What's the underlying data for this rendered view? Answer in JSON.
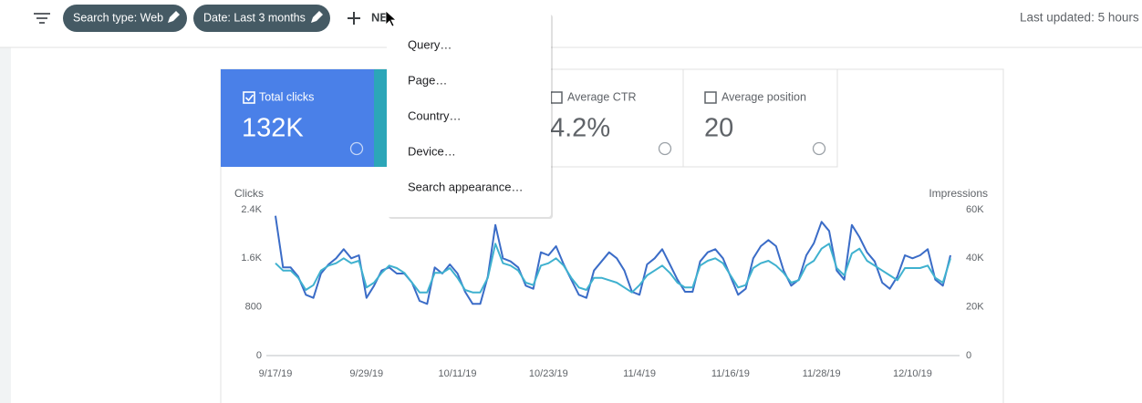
{
  "toolbar": {
    "chips": [
      "Search type: Web",
      "Date: Last 3 months"
    ],
    "new_button": "NEW",
    "last_updated": "Last updated: 5 hours"
  },
  "metrics": [
    {
      "label": "Total clicks",
      "value": "132K"
    },
    {
      "label": "Average CTR",
      "value": "4.2%"
    },
    {
      "label": "Average position",
      "value": "20"
    }
  ],
  "menu": {
    "items": [
      "Query…",
      "Page…",
      "Country…",
      "Device…",
      "Search appearance…"
    ]
  },
  "chart_data": {
    "type": "line",
    "y_label": "Clicks",
    "y2_label": "Impressions",
    "categories": [
      "9/17/19",
      null,
      null,
      null,
      null,
      null,
      null,
      null,
      null,
      null,
      null,
      null,
      "9/29/19",
      null,
      null,
      null,
      null,
      null,
      null,
      null,
      null,
      null,
      null,
      null,
      "10/11/19",
      null,
      null,
      null,
      null,
      null,
      null,
      null,
      null,
      null,
      null,
      null,
      "10/23/19",
      null,
      null,
      null,
      null,
      null,
      null,
      null,
      null,
      null,
      null,
      null,
      "11/4/19",
      null,
      null,
      null,
      null,
      null,
      null,
      null,
      null,
      null,
      null,
      null,
      "11/16/19",
      null,
      null,
      null,
      null,
      null,
      null,
      null,
      null,
      null,
      null,
      null,
      "11/28/19",
      null,
      null,
      null,
      null,
      null,
      null,
      null,
      null,
      null,
      null,
      null,
      "12/10/19",
      null,
      null,
      null,
      null,
      null
    ],
    "ylim": [
      0,
      2400
    ],
    "yticks": [
      {
        "value": 2400,
        "label": "2.4K"
      },
      {
        "value": 1600,
        "label": "1.6K"
      },
      800,
      0
    ],
    "y2lim": [
      0,
      60000
    ],
    "y2ticks": [
      {
        "value": 60000,
        "label": "60K"
      },
      {
        "value": 40000,
        "label": "40K"
      },
      {
        "value": 20000,
        "label": "20K"
      },
      0
    ],
    "grid": false,
    "series": [
      {
        "color": "#3b6cc7",
        "values": [
          2300,
          1450,
          1450,
          1300,
          1000,
          950,
          1350,
          1500,
          1600,
          1750,
          1600,
          1650,
          950,
          1150,
          1400,
          1450,
          1350,
          1350,
          1200,
          900,
          850,
          1450,
          1350,
          1500,
          1350,
          1050,
          850,
          850,
          1300,
          2150,
          1600,
          1550,
          1450,
          1150,
          1100,
          1700,
          1650,
          1800,
          1500,
          1250,
          1000,
          950,
          1400,
          1550,
          1700,
          1600,
          1400,
          1050,
          1000,
          1500,
          1600,
          1750,
          1500,
          1250,
          1050,
          1050,
          1550,
          1700,
          1750,
          1600,
          1300,
          1000,
          1100,
          1600,
          1800,
          1900,
          1800,
          1400,
          1150,
          1250,
          1650,
          1850,
          2200,
          2050,
          1400,
          1250,
          2150,
          1950,
          1700,
          1550,
          1200,
          1100,
          1300,
          1650,
          1600,
          1650,
          1750,
          1250,
          1150,
          1650
        ]
      },
      {
        "color": "#3fb1cf",
        "axis": "y2",
        "values": [
          38000,
          35000,
          35000,
          32000,
          27000,
          29000,
          35000,
          37000,
          38000,
          40000,
          38000,
          39000,
          28000,
          30000,
          34000,
          37000,
          36000,
          34000,
          30000,
          26000,
          26000,
          34000,
          34000,
          36000,
          32000,
          27000,
          26000,
          26000,
          32000,
          46000,
          38000,
          37000,
          35000,
          30000,
          29000,
          37000,
          38000,
          40000,
          37000,
          32000,
          28000,
          27000,
          32000,
          32000,
          31000,
          30000,
          28000,
          26000,
          29000,
          33000,
          35000,
          37000,
          34000,
          30000,
          28000,
          28000,
          37000,
          39000,
          40000,
          38000,
          33000,
          28000,
          29000,
          36000,
          38000,
          39000,
          37000,
          34000,
          30000,
          31000,
          37000,
          39000,
          44000,
          46000,
          36000,
          33000,
          42000,
          44000,
          39000,
          37000,
          35000,
          33000,
          31000,
          36000,
          36000,
          36000,
          37000,
          32000,
          30000,
          40000
        ]
      }
    ]
  }
}
